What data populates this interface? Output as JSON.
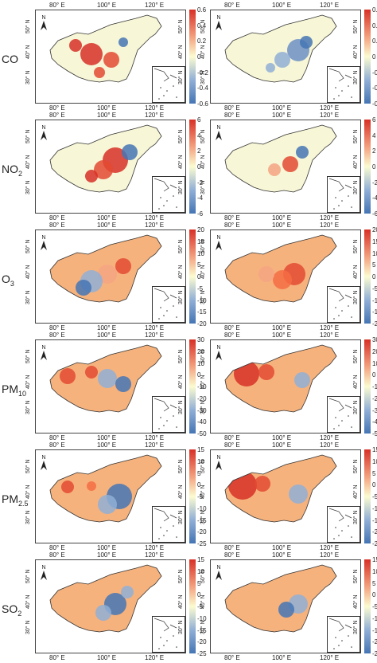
{
  "lon_ticks": [
    "80° E",
    "100° E",
    "120° E"
  ],
  "lat_ticks": [
    "50° N",
    "40° N",
    "30° N"
  ],
  "north": "N",
  "rows": [
    {
      "name": "CO",
      "sub": "",
      "cbar": [
        "0.6",
        "0.4",
        "0.2",
        "0",
        "-0.2",
        "-0.4",
        "-0.6"
      ]
    },
    {
      "name": "NO",
      "sub": "2",
      "cbar": [
        "6",
        "4",
        "2",
        "0",
        "-2",
        "-4",
        "-6"
      ]
    },
    {
      "name": "O",
      "sub": "3",
      "cbar": [
        "20",
        "15",
        "10",
        "5",
        "0",
        "-5",
        "-10",
        "-15",
        "-20"
      ]
    },
    {
      "name": "PM",
      "sub": "10",
      "cbar": [
        "30",
        "20",
        "10",
        "0",
        "-10",
        "-20",
        "-30",
        "-40",
        "-50"
      ]
    },
    {
      "name": "PM",
      "sub": "2.5",
      "cbar": [
        "15",
        "10",
        "5",
        "0",
        "-5",
        "-10",
        "-15",
        "-20",
        "-25"
      ]
    },
    {
      "name": "SO",
      "sub": "2",
      "cbar": [
        "15",
        "10",
        "5",
        "0",
        "-5",
        "-10",
        "-15",
        "-20",
        "-25"
      ]
    }
  ],
  "colors": {
    "high": "#d73027",
    "mid": "#fbfbd0",
    "low": "#4575b4",
    "land_pos": "#f6b27d",
    "land_neutral": "#f7f6d7"
  }
}
